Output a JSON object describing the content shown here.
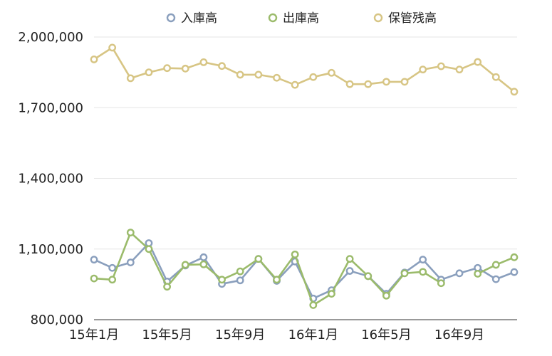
{
  "chart_data": {
    "type": "line",
    "title": "",
    "xlabel": "",
    "ylabel": "",
    "x": [
      "15年1月",
      "15年2月",
      "15年3月",
      "15年4月",
      "15年5月",
      "15年6月",
      "15年7月",
      "15年8月",
      "15年9月",
      "15年10月",
      "15年11月",
      "15年12月",
      "16年1月",
      "16年2月",
      "16年3月",
      "16年4月",
      "16年5月",
      "16年6月",
      "16年7月",
      "16年8月",
      "16年9月",
      "16年10月",
      "16年11月",
      "16年12月"
    ],
    "x_tick_labels": [
      "15年1月",
      "15年5月",
      "15年9月",
      "16年1月",
      "16年5月",
      "16年9月"
    ],
    "x_tick_indices": [
      0,
      4,
      8,
      12,
      16,
      20
    ],
    "ylim": [
      800000,
      2000000
    ],
    "y_ticks": [
      800000,
      1100000,
      1400000,
      1700000,
      2000000
    ],
    "y_tick_labels": [
      "800,000",
      "1,100,000",
      "1,400,000",
      "1,700,000",
      "2,000,000"
    ],
    "grid": true,
    "legend_position": "top-center",
    "series": [
      {
        "name": "入庫高",
        "color": "#8a9fbd",
        "values": [
          1055000,
          1020000,
          1043000,
          1125000,
          962000,
          1030000,
          1065000,
          952000,
          967000,
          1058000,
          965000,
          1047000,
          890000,
          925000,
          1007000,
          985000,
          910000,
          1000000,
          1055000,
          970000,
          997000,
          1020000,
          972000,
          1002000
        ]
      },
      {
        "name": "出庫高",
        "color": "#9bbb6b",
        "values": [
          975000,
          970000,
          1170000,
          1100000,
          940000,
          1033000,
          1035000,
          970000,
          1005000,
          1058000,
          970000,
          1077000,
          862000,
          910000,
          1058000,
          985000,
          902000,
          997000,
          1003000,
          955000,
          null,
          995000,
          1033000,
          1065000
        ]
      },
      {
        "name": "保管残高",
        "color": "#d7c584",
        "values": [
          1905000,
          1955000,
          1825000,
          1850000,
          1868000,
          1866000,
          1893000,
          1877000,
          1840000,
          1840000,
          1827000,
          1797000,
          1830000,
          1848000,
          1800000,
          1800000,
          1810000,
          1810000,
          1862000,
          1876000,
          1862000,
          1894000,
          1830000,
          1768000
        ]
      }
    ]
  }
}
